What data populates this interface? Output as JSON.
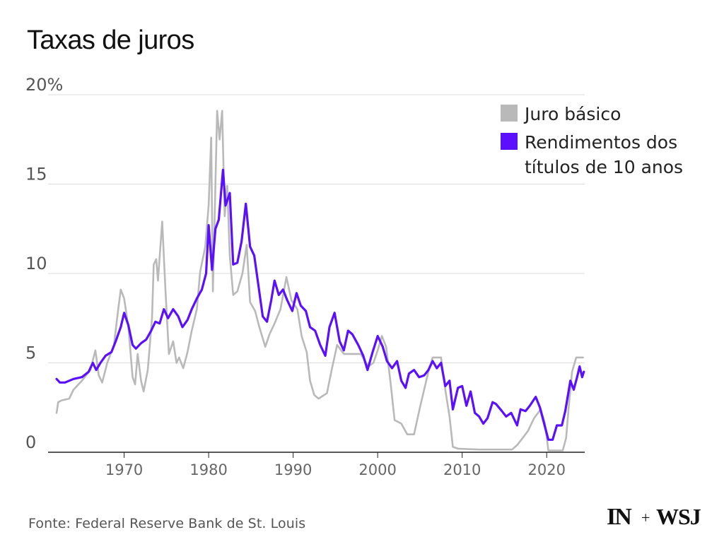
{
  "title": "Taxas de juros",
  "source": "Fonte: Federal Reserve Bank de St. Louis",
  "logos": {
    "left": "IN",
    "plus": "+",
    "right": "WSJ"
  },
  "colors": {
    "fed_funds": "#b9b9b9",
    "treasury_10y": "#5a0fff",
    "grid": "#dddddd",
    "axis": "#222222"
  },
  "chart_data": {
    "type": "line",
    "title": "Taxas de juros",
    "xlabel": "",
    "ylabel": "",
    "xlim": [
      1961,
      2024.5
    ],
    "ylim": [
      0,
      20
    ],
    "xticks": [
      1970,
      1980,
      1990,
      2000,
      2010,
      2020
    ],
    "xtick_labels": [
      "1970",
      "1980",
      "1990",
      "2000",
      "2010",
      "2020"
    ],
    "yticks": [
      0,
      5,
      10,
      15,
      20
    ],
    "ytick_labels": [
      "0",
      "5",
      "10",
      "15",
      "20%"
    ],
    "grid": "horizontal",
    "legend_position": "top-right",
    "series": [
      {
        "name": "Juro básico",
        "color": "#b9b9b9",
        "points": [
          [
            1962.0,
            2.2
          ],
          [
            1962.2,
            2.8
          ],
          [
            1962.6,
            2.9
          ],
          [
            1963.5,
            3.0
          ],
          [
            1964.0,
            3.5
          ],
          [
            1965.0,
            4.0
          ],
          [
            1966.0,
            4.6
          ],
          [
            1966.6,
            5.7
          ],
          [
            1967.0,
            4.3
          ],
          [
            1967.4,
            3.9
          ],
          [
            1968.0,
            5.0
          ],
          [
            1968.8,
            6.0
          ],
          [
            1969.3,
            8.0
          ],
          [
            1969.6,
            9.1
          ],
          [
            1970.0,
            8.6
          ],
          [
            1970.5,
            7.0
          ],
          [
            1971.0,
            4.2
          ],
          [
            1971.3,
            3.8
          ],
          [
            1971.6,
            5.5
          ],
          [
            1972.0,
            4.0
          ],
          [
            1972.3,
            3.4
          ],
          [
            1972.8,
            4.6
          ],
          [
            1973.3,
            7.5
          ],
          [
            1973.5,
            10.5
          ],
          [
            1973.8,
            10.8
          ],
          [
            1974.0,
            9.6
          ],
          [
            1974.5,
            12.9
          ],
          [
            1974.9,
            9.0
          ],
          [
            1975.3,
            5.5
          ],
          [
            1975.8,
            6.2
          ],
          [
            1976.2,
            5.0
          ],
          [
            1976.5,
            5.3
          ],
          [
            1977.0,
            4.7
          ],
          [
            1977.5,
            5.6
          ],
          [
            1978.0,
            6.8
          ],
          [
            1978.6,
            8.0
          ],
          [
            1979.0,
            10.1
          ],
          [
            1979.6,
            11.5
          ],
          [
            1980.0,
            13.8
          ],
          [
            1980.3,
            17.6
          ],
          [
            1980.5,
            9.0
          ],
          [
            1980.8,
            15.0
          ],
          [
            1981.0,
            19.1
          ],
          [
            1981.3,
            17.5
          ],
          [
            1981.6,
            19.1
          ],
          [
            1981.9,
            13.2
          ],
          [
            1982.2,
            14.9
          ],
          [
            1982.5,
            11.0
          ],
          [
            1982.9,
            8.8
          ],
          [
            1983.4,
            9.0
          ],
          [
            1984.0,
            10.0
          ],
          [
            1984.5,
            11.6
          ],
          [
            1984.9,
            8.4
          ],
          [
            1985.5,
            7.9
          ],
          [
            1986.0,
            7.0
          ],
          [
            1986.7,
            5.9
          ],
          [
            1987.2,
            6.6
          ],
          [
            1987.8,
            7.2
          ],
          [
            1988.5,
            8.0
          ],
          [
            1989.2,
            9.8
          ],
          [
            1989.8,
            8.5
          ],
          [
            1990.5,
            8.0
          ],
          [
            1991.0,
            6.5
          ],
          [
            1991.6,
            5.6
          ],
          [
            1992.0,
            4.0
          ],
          [
            1992.5,
            3.2
          ],
          [
            1993.0,
            3.0
          ],
          [
            1994.0,
            3.3
          ],
          [
            1994.6,
            4.7
          ],
          [
            1995.2,
            6.0
          ],
          [
            1996.0,
            5.5
          ],
          [
            1997.0,
            5.5
          ],
          [
            1998.0,
            5.5
          ],
          [
            1998.9,
            4.8
          ],
          [
            1999.5,
            5.0
          ],
          [
            2000.0,
            5.7
          ],
          [
            2000.5,
            6.5
          ],
          [
            2001.0,
            5.9
          ],
          [
            2001.5,
            4.0
          ],
          [
            2002.0,
            1.8
          ],
          [
            2002.8,
            1.6
          ],
          [
            2003.5,
            1.0
          ],
          [
            2004.3,
            1.0
          ],
          [
            2005.0,
            2.5
          ],
          [
            2006.0,
            4.5
          ],
          [
            2006.5,
            5.3
          ],
          [
            2007.5,
            5.3
          ],
          [
            2008.0,
            3.5
          ],
          [
            2008.5,
            2.0
          ],
          [
            2008.9,
            0.3
          ],
          [
            2009.5,
            0.2
          ],
          [
            2012.0,
            0.15
          ],
          [
            2015.9,
            0.15
          ],
          [
            2016.5,
            0.4
          ],
          [
            2017.0,
            0.7
          ],
          [
            2017.8,
            1.2
          ],
          [
            2018.5,
            1.9
          ],
          [
            2019.3,
            2.4
          ],
          [
            2019.8,
            1.6
          ],
          [
            2020.2,
            0.1
          ],
          [
            2021.9,
            0.1
          ],
          [
            2022.3,
            0.8
          ],
          [
            2022.6,
            2.5
          ],
          [
            2023.0,
            4.5
          ],
          [
            2023.5,
            5.3
          ],
          [
            2024.3,
            5.3
          ]
        ]
      },
      {
        "name": "Rendimentos dos títulos de 10 anos",
        "color": "#5a0fff",
        "points": [
          [
            1962.0,
            4.1
          ],
          [
            1962.4,
            3.9
          ],
          [
            1963.0,
            3.9
          ],
          [
            1964.0,
            4.1
          ],
          [
            1965.0,
            4.2
          ],
          [
            1965.8,
            4.5
          ],
          [
            1966.3,
            5.0
          ],
          [
            1966.7,
            4.6
          ],
          [
            1967.2,
            5.0
          ],
          [
            1967.8,
            5.4
          ],
          [
            1968.5,
            5.6
          ],
          [
            1969.0,
            6.2
          ],
          [
            1969.6,
            7.0
          ],
          [
            1970.0,
            7.8
          ],
          [
            1970.5,
            7.1
          ],
          [
            1971.0,
            6.0
          ],
          [
            1971.4,
            5.8
          ],
          [
            1972.0,
            6.1
          ],
          [
            1972.6,
            6.3
          ],
          [
            1973.2,
            6.8
          ],
          [
            1973.7,
            7.3
          ],
          [
            1974.2,
            7.2
          ],
          [
            1974.7,
            8.0
          ],
          [
            1975.2,
            7.5
          ],
          [
            1975.8,
            8.0
          ],
          [
            1976.4,
            7.6
          ],
          [
            1976.9,
            7.0
          ],
          [
            1977.5,
            7.4
          ],
          [
            1978.0,
            8.0
          ],
          [
            1978.6,
            8.6
          ],
          [
            1979.2,
            9.1
          ],
          [
            1979.7,
            10.0
          ],
          [
            1980.0,
            12.7
          ],
          [
            1980.4,
            10.2
          ],
          [
            1980.8,
            12.5
          ],
          [
            1981.2,
            13.0
          ],
          [
            1981.7,
            15.8
          ],
          [
            1982.0,
            13.8
          ],
          [
            1982.5,
            14.5
          ],
          [
            1982.9,
            10.5
          ],
          [
            1983.4,
            10.6
          ],
          [
            1983.9,
            11.8
          ],
          [
            1984.4,
            13.9
          ],
          [
            1984.9,
            11.5
          ],
          [
            1985.4,
            11.0
          ],
          [
            1985.9,
            9.3
          ],
          [
            1986.4,
            7.6
          ],
          [
            1986.9,
            7.3
          ],
          [
            1987.4,
            8.5
          ],
          [
            1987.8,
            9.6
          ],
          [
            1988.3,
            8.8
          ],
          [
            1988.8,
            9.1
          ],
          [
            1989.3,
            8.5
          ],
          [
            1989.9,
            7.9
          ],
          [
            1990.4,
            8.9
          ],
          [
            1990.9,
            8.2
          ],
          [
            1991.5,
            7.9
          ],
          [
            1992.0,
            7.0
          ],
          [
            1992.6,
            6.8
          ],
          [
            1993.2,
            6.0
          ],
          [
            1993.8,
            5.4
          ],
          [
            1994.3,
            7.0
          ],
          [
            1994.9,
            7.8
          ],
          [
            1995.5,
            6.2
          ],
          [
            1996.0,
            5.7
          ],
          [
            1996.5,
            6.8
          ],
          [
            1997.0,
            6.6
          ],
          [
            1997.7,
            6.0
          ],
          [
            1998.3,
            5.4
          ],
          [
            1998.8,
            4.6
          ],
          [
            1999.4,
            5.6
          ],
          [
            2000.0,
            6.5
          ],
          [
            2000.6,
            5.9
          ],
          [
            2001.1,
            5.1
          ],
          [
            2001.7,
            4.7
          ],
          [
            2002.3,
            5.1
          ],
          [
            2002.8,
            4.0
          ],
          [
            2003.3,
            3.6
          ],
          [
            2003.7,
            4.4
          ],
          [
            2004.3,
            4.6
          ],
          [
            2004.9,
            4.2
          ],
          [
            2005.5,
            4.3
          ],
          [
            2006.0,
            4.6
          ],
          [
            2006.5,
            5.1
          ],
          [
            2007.0,
            4.7
          ],
          [
            2007.5,
            5.0
          ],
          [
            2008.0,
            3.7
          ],
          [
            2008.5,
            4.0
          ],
          [
            2008.9,
            2.4
          ],
          [
            2009.5,
            3.6
          ],
          [
            2010.0,
            3.7
          ],
          [
            2010.5,
            2.6
          ],
          [
            2011.0,
            3.4
          ],
          [
            2011.5,
            2.2
          ],
          [
            2012.0,
            2.0
          ],
          [
            2012.5,
            1.6
          ],
          [
            2013.0,
            1.9
          ],
          [
            2013.6,
            2.8
          ],
          [
            2014.0,
            2.7
          ],
          [
            2014.7,
            2.3
          ],
          [
            2015.2,
            2.0
          ],
          [
            2015.8,
            2.2
          ],
          [
            2016.5,
            1.5
          ],
          [
            2016.9,
            2.4
          ],
          [
            2017.5,
            2.3
          ],
          [
            2018.0,
            2.6
          ],
          [
            2018.7,
            3.1
          ],
          [
            2019.2,
            2.5
          ],
          [
            2019.7,
            1.6
          ],
          [
            2020.2,
            0.7
          ],
          [
            2020.7,
            0.7
          ],
          [
            2021.2,
            1.5
          ],
          [
            2021.8,
            1.5
          ],
          [
            2022.2,
            2.3
          ],
          [
            2022.8,
            4.0
          ],
          [
            2023.2,
            3.5
          ],
          [
            2023.6,
            4.2
          ],
          [
            2023.9,
            4.8
          ],
          [
            2024.2,
            4.2
          ],
          [
            2024.4,
            4.5
          ]
        ]
      }
    ]
  }
}
